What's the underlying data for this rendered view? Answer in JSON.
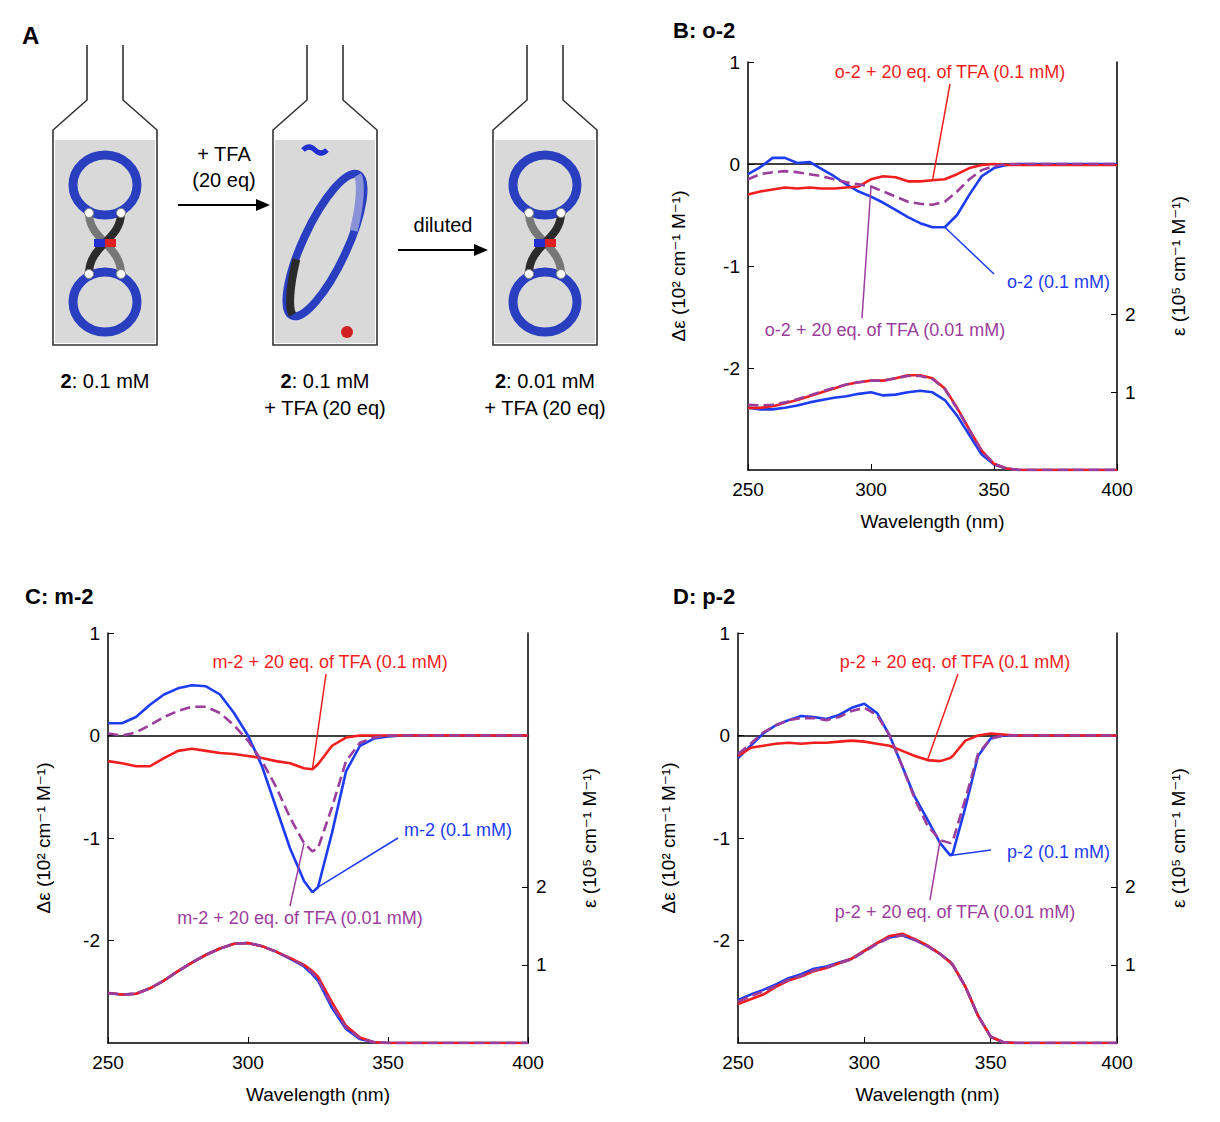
{
  "diagram": {
    "label": "A",
    "steps": [
      {
        "compound": "2",
        "lines": [
          ": 0.1 mM"
        ]
      },
      {
        "compound": "2",
        "lines": [
          ": 0.1 mM",
          "+ TFA (20 eq)"
        ]
      },
      {
        "compound": "2",
        "lines": [
          ": 0.01 mM",
          "+ TFA (20 eq)"
        ]
      }
    ],
    "arrows": [
      {
        "lines": [
          "+ TFA",
          "(20 eq)"
        ]
      },
      {
        "lines": [
          "diluted"
        ]
      }
    ]
  },
  "chart_data": [
    {
      "type": "line",
      "title": "B: o-2",
      "xlabel": "Wavelength (nm)",
      "ylabel": "Δε (10² cm⁻¹ M⁻¹)",
      "y2label": "ε (10⁵ cm⁻¹ M⁻¹)",
      "x": [
        250,
        255,
        260,
        265,
        270,
        275,
        280,
        285,
        290,
        295,
        300,
        305,
        310,
        315,
        320,
        325,
        330,
        335,
        340,
        345,
        350,
        355,
        360,
        365,
        370,
        375,
        380,
        385,
        390,
        395,
        400
      ],
      "xlim": [
        250,
        400
      ],
      "xticks": [
        250,
        300,
        350,
        400
      ],
      "ylim": [
        -3,
        1
      ],
      "yticks": [
        -2,
        -1,
        0,
        1
      ],
      "y2lim": [
        0,
        5.25
      ],
      "y2ticks": [
        1,
        2
      ],
      "series": [
        {
          "name": "o-2 (0.1 mM)",
          "color": "#1e3cf0",
          "line_style": "solid",
          "values": [
            -0.1,
            -0.03,
            0.06,
            0.06,
            0.01,
            0.02,
            -0.05,
            -0.12,
            -0.2,
            -0.27,
            -0.32,
            -0.38,
            -0.45,
            -0.52,
            -0.58,
            -0.62,
            -0.62,
            -0.5,
            -0.3,
            -0.12,
            -0.04,
            -0.01,
            0,
            0,
            0,
            0,
            0,
            0,
            0,
            0,
            0
          ]
        },
        {
          "name": "o-2 + 20 eq. of TFA (0.1 mM)",
          "color": "#f01e1e",
          "line_style": "solid",
          "values": [
            -0.3,
            -0.27,
            -0.25,
            -0.23,
            -0.24,
            -0.23,
            -0.24,
            -0.24,
            -0.23,
            -0.22,
            -0.15,
            -0.12,
            -0.13,
            -0.17,
            -0.17,
            -0.16,
            -0.15,
            -0.1,
            -0.04,
            -0.01,
            0,
            -0.01,
            -0.01,
            -0.01,
            -0.01,
            -0.01,
            -0.01,
            -0.01,
            -0.01,
            -0.01,
            -0.01
          ]
        },
        {
          "name": "o-2 + 20 eq. of TFA (0.01 mM)",
          "color": "#9b3d9b",
          "line_style": "dashed",
          "values": [
            -0.15,
            -0.1,
            -0.08,
            -0.07,
            -0.08,
            -0.1,
            -0.12,
            -0.15,
            -0.18,
            -0.2,
            -0.22,
            -0.27,
            -0.32,
            -0.37,
            -0.39,
            -0.4,
            -0.37,
            -0.27,
            -0.15,
            -0.06,
            -0.02,
            0,
            0,
            0,
            0,
            0,
            0,
            0,
            0,
            0,
            0
          ]
        },
        {
          "color": "#1e3cf0",
          "line_style": "solid",
          "axis": "y2",
          "values": [
            0.8,
            0.78,
            0.78,
            0.8,
            0.83,
            0.87,
            0.9,
            0.93,
            0.95,
            0.98,
            1.0,
            0.96,
            0.97,
            1.0,
            1.02,
            1.0,
            0.9,
            0.7,
            0.45,
            0.2,
            0.07,
            0.02,
            0,
            0,
            0,
            0,
            0,
            0,
            0,
            0,
            0
          ]
        },
        {
          "color": "#f01e1e",
          "line_style": "solid",
          "axis": "y2",
          "values": [
            0.8,
            0.8,
            0.82,
            0.86,
            0.9,
            0.95,
            1.0,
            1.05,
            1.1,
            1.13,
            1.15,
            1.15,
            1.18,
            1.22,
            1.22,
            1.18,
            1.05,
            0.8,
            0.52,
            0.25,
            0.08,
            0.02,
            0,
            0,
            0,
            0,
            0,
            0,
            0,
            0,
            0
          ]
        },
        {
          "color": "#9b3d9b",
          "line_style": "dashed",
          "axis": "y2",
          "values": [
            0.84,
            0.83,
            0.84,
            0.87,
            0.91,
            0.96,
            1.01,
            1.06,
            1.1,
            1.13,
            1.15,
            1.15,
            1.18,
            1.21,
            1.21,
            1.17,
            1.04,
            0.79,
            0.51,
            0.24,
            0.08,
            0.02,
            0,
            0,
            0,
            0,
            0,
            0,
            0,
            0,
            0
          ]
        }
      ]
    },
    {
      "type": "line",
      "title": "C: m-2",
      "xlabel": "Wavelength (nm)",
      "ylabel": "Δε (10² cm⁻¹ M⁻¹)",
      "y2label": "ε (10⁵ cm⁻¹ M⁻¹)",
      "x": [
        250,
        255,
        260,
        265,
        270,
        275,
        280,
        285,
        290,
        295,
        300,
        305,
        310,
        315,
        320,
        323,
        325,
        330,
        335,
        340,
        345,
        350,
        355,
        360,
        365,
        370,
        375,
        380,
        385,
        390,
        395,
        400
      ],
      "xlim": [
        250,
        400
      ],
      "xticks": [
        250,
        300,
        350,
        400
      ],
      "ylim": [
        -3,
        1
      ],
      "yticks": [
        -2,
        -1,
        0,
        1
      ],
      "y2lim": [
        0,
        5.25
      ],
      "y2ticks": [
        1,
        2
      ],
      "series": [
        {
          "name": "m-2 (0.1 mM)",
          "color": "#1e3cf0",
          "line_style": "solid",
          "values": [
            0.12,
            0.12,
            0.18,
            0.3,
            0.4,
            0.46,
            0.49,
            0.48,
            0.4,
            0.22,
            0.0,
            -0.3,
            -0.7,
            -1.1,
            -1.42,
            -1.53,
            -1.48,
            -0.95,
            -0.35,
            -0.1,
            -0.03,
            -0.01,
            0,
            0,
            0,
            0,
            0,
            0,
            0,
            0,
            0,
            0
          ]
        },
        {
          "name": "m-2 + 20 eq. of TFA (0.1 mM)",
          "color": "#f01e1e",
          "line_style": "solid",
          "values": [
            -0.25,
            -0.27,
            -0.3,
            -0.3,
            -0.22,
            -0.15,
            -0.13,
            -0.15,
            -0.17,
            -0.18,
            -0.2,
            -0.22,
            -0.25,
            -0.27,
            -0.32,
            -0.33,
            -0.28,
            -0.1,
            -0.02,
            0,
            0,
            0,
            0,
            0,
            0,
            0,
            0,
            0,
            0,
            0,
            0,
            0
          ]
        },
        {
          "name": "m-2 + 20 eq. of TFA (0.01 mM)",
          "color": "#9b3d9b",
          "line_style": "dashed",
          "values": [
            0.02,
            0.0,
            0.03,
            0.1,
            0.18,
            0.24,
            0.28,
            0.28,
            0.22,
            0.1,
            -0.05,
            -0.25,
            -0.5,
            -0.8,
            -1.05,
            -1.13,
            -1.1,
            -0.7,
            -0.25,
            -0.07,
            -0.02,
            0,
            0,
            0,
            0,
            0,
            0,
            0,
            0,
            0,
            0,
            0
          ]
        },
        {
          "color": "#1e3cf0",
          "line_style": "solid",
          "axis": "y2",
          "values": [
            0.64,
            0.62,
            0.63,
            0.7,
            0.8,
            0.92,
            1.03,
            1.13,
            1.21,
            1.27,
            1.28,
            1.24,
            1.17,
            1.08,
            0.98,
            0.88,
            0.8,
            0.45,
            0.18,
            0.05,
            0.01,
            0,
            0,
            0,
            0,
            0,
            0,
            0,
            0,
            0,
            0,
            0
          ]
        },
        {
          "color": "#f01e1e",
          "line_style": "solid",
          "axis": "y2",
          "values": [
            0.64,
            0.62,
            0.63,
            0.7,
            0.8,
            0.92,
            1.03,
            1.13,
            1.21,
            1.27,
            1.28,
            1.24,
            1.17,
            1.09,
            1.0,
            0.92,
            0.85,
            0.52,
            0.22,
            0.07,
            0.01,
            0,
            0,
            0,
            0,
            0,
            0,
            0,
            0,
            0,
            0,
            0
          ]
        },
        {
          "color": "#9b3d9b",
          "line_style": "dashed",
          "axis": "y2",
          "values": [
            0.64,
            0.62,
            0.63,
            0.7,
            0.8,
            0.92,
            1.03,
            1.13,
            1.21,
            1.27,
            1.28,
            1.24,
            1.17,
            1.08,
            0.99,
            0.9,
            0.82,
            0.48,
            0.2,
            0.06,
            0.01,
            0,
            0,
            0,
            0,
            0,
            0,
            0,
            0,
            0,
            0,
            0
          ]
        }
      ]
    },
    {
      "type": "line",
      "title": "D: p-2",
      "xlabel": "Wavelength (nm)",
      "ylabel": "Δε (10² cm⁻¹ M⁻¹)",
      "y2label": "ε (10⁵ cm⁻¹ M⁻¹)",
      "x": [
        250,
        255,
        260,
        265,
        270,
        275,
        280,
        285,
        290,
        295,
        300,
        305,
        310,
        315,
        320,
        325,
        330,
        334,
        335,
        340,
        345,
        350,
        355,
        360,
        365,
        370,
        375,
        380,
        385,
        390,
        395,
        400
      ],
      "xlim": [
        250,
        400
      ],
      "xticks": [
        250,
        300,
        350,
        400
      ],
      "ylim": [
        -3,
        1
      ],
      "yticks": [
        -2,
        -1,
        0,
        1
      ],
      "y2lim": [
        0,
        5.25
      ],
      "y2ticks": [
        1,
        2
      ],
      "series": [
        {
          "name": "p-2 (0.1 mM)",
          "color": "#1e3cf0",
          "line_style": "solid",
          "values": [
            -0.22,
            -0.1,
            0.02,
            0.1,
            0.15,
            0.19,
            0.18,
            0.16,
            0.2,
            0.27,
            0.31,
            0.22,
            0.0,
            -0.3,
            -0.6,
            -0.82,
            -1.05,
            -1.17,
            -1.15,
            -0.7,
            -0.2,
            -0.03,
            0,
            0,
            0,
            0,
            0,
            0,
            0,
            0,
            0,
            0
          ]
        },
        {
          "name": "p-2 + 20 eq. of TFA (0.1 mM)",
          "color": "#f01e1e",
          "line_style": "solid",
          "values": [
            -0.2,
            -0.12,
            -0.1,
            -0.08,
            -0.07,
            -0.08,
            -0.07,
            -0.07,
            -0.06,
            -0.05,
            -0.06,
            -0.08,
            -0.1,
            -0.15,
            -0.2,
            -0.24,
            -0.25,
            -0.22,
            -0.2,
            -0.05,
            0.0,
            0.02,
            0.01,
            0,
            0,
            0,
            0,
            0,
            0,
            0,
            0,
            0
          ]
        },
        {
          "name": "p-2 + 20 eq. of TFA (0.01 mM)",
          "color": "#9b3d9b",
          "line_style": "dashed",
          "values": [
            -0.18,
            -0.08,
            0.03,
            0.1,
            0.15,
            0.17,
            0.17,
            0.15,
            0.18,
            0.24,
            0.27,
            0.2,
            0.0,
            -0.3,
            -0.62,
            -0.88,
            -1.02,
            -1.05,
            -1.03,
            -0.62,
            -0.18,
            -0.03,
            0,
            0,
            0,
            0,
            0,
            0,
            0,
            0,
            0,
            0
          ]
        },
        {
          "color": "#1e3cf0",
          "line_style": "solid",
          "axis": "y2",
          "values": [
            0.55,
            0.62,
            0.68,
            0.75,
            0.83,
            0.88,
            0.95,
            0.98,
            1.03,
            1.08,
            1.18,
            1.28,
            1.35,
            1.38,
            1.32,
            1.24,
            1.14,
            1.04,
            1.0,
            0.72,
            0.35,
            0.08,
            0.01,
            0,
            0,
            0,
            0,
            0,
            0,
            0,
            0,
            0
          ]
        },
        {
          "color": "#f01e1e",
          "line_style": "solid",
          "axis": "y2",
          "values": [
            0.5,
            0.56,
            0.62,
            0.72,
            0.8,
            0.85,
            0.92,
            0.96,
            1.02,
            1.08,
            1.18,
            1.28,
            1.37,
            1.4,
            1.33,
            1.25,
            1.14,
            1.03,
            1.0,
            0.72,
            0.35,
            0.08,
            0.01,
            0,
            0,
            0,
            0,
            0,
            0,
            0,
            0,
            0
          ]
        },
        {
          "color": "#9b3d9b",
          "line_style": "dashed",
          "axis": "y2",
          "values": [
            0.53,
            0.6,
            0.66,
            0.73,
            0.81,
            0.86,
            0.93,
            0.97,
            1.02,
            1.07,
            1.17,
            1.27,
            1.35,
            1.38,
            1.32,
            1.24,
            1.14,
            1.04,
            1.0,
            0.72,
            0.35,
            0.08,
            0.01,
            0,
            0,
            0,
            0,
            0,
            0,
            0,
            0,
            0
          ]
        }
      ]
    }
  ]
}
